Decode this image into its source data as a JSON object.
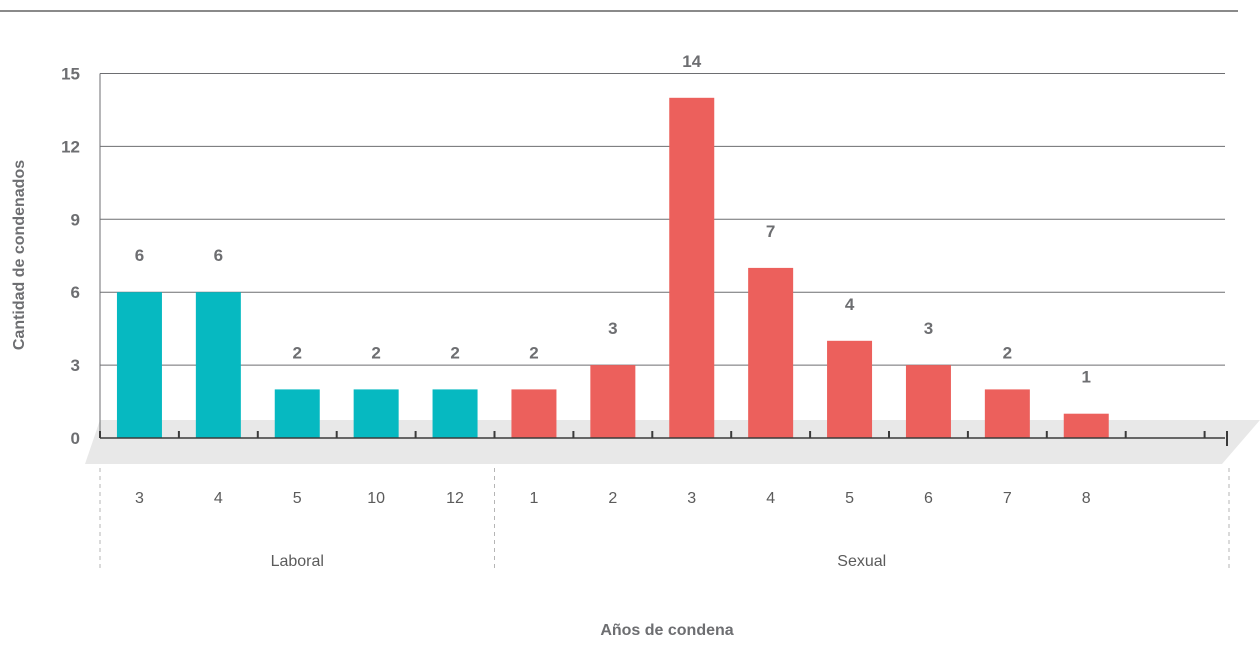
{
  "chart_data": {
    "type": "bar",
    "xlabel": "Años de condena",
    "ylabel": "Cantidad de condenados",
    "ylim": [
      0,
      15
    ],
    "yticks": [
      0,
      3,
      6,
      9,
      12,
      15
    ],
    "grid": true,
    "groups": [
      {
        "name": "Laboral",
        "color": "#06b9c1",
        "categories": [
          "3",
          "4",
          "5",
          "10",
          "12"
        ],
        "values": [
          6,
          6,
          2,
          2,
          2
        ]
      },
      {
        "name": "Sexual",
        "color": "#ec605c",
        "categories": [
          "1",
          "2",
          "3",
          "4",
          "5",
          "6",
          "7",
          "8"
        ],
        "values": [
          2,
          3,
          14,
          7,
          4,
          3,
          2,
          1
        ]
      }
    ]
  }
}
